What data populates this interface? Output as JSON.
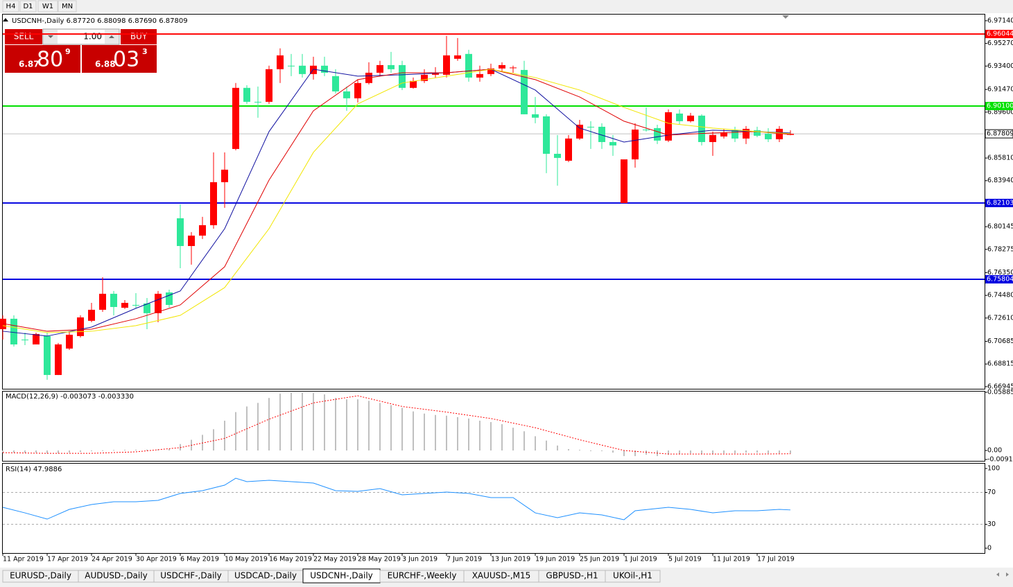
{
  "toolbar": {
    "timeframes": [
      "H4",
      "D1",
      "W1",
      "MN"
    ]
  },
  "trade_panel": {
    "sell_label": "SELL",
    "lot": "1.00",
    "buy_label": "BUY",
    "sell_price": {
      "big": "6.87",
      "main": "80",
      "sup": "9"
    },
    "buy_price": {
      "big": "6.88",
      "main": "03",
      "sup": "3"
    }
  },
  "chart_data": [
    {
      "type": "candlestick",
      "title": "USDCNH-,Daily  6.87720 6.88098 6.87690 6.87809",
      "categories": [
        "11 Apr 2019",
        null,
        null,
        null,
        "17 Apr 2019",
        null,
        null,
        null,
        "24 Apr 2019",
        null,
        null,
        null,
        "30 Apr 2019",
        null,
        null,
        null,
        "6 May 2019",
        null,
        null,
        null,
        "10 May 2019",
        null,
        null,
        null,
        "16 May 2019",
        null,
        null,
        null,
        "22 May 2019",
        null,
        null,
        null,
        "28 May 2019",
        null,
        null,
        null,
        "3 Jun 2019",
        null,
        null,
        null,
        "7 Jun 2019",
        null,
        null,
        null,
        "13 Jun 2019",
        null,
        null,
        null,
        "19 Jun 2019",
        null,
        null,
        null,
        "25 Jun 2019",
        null,
        null,
        null,
        "1 Jul 2019",
        null,
        null,
        null,
        "5 Jul 2019",
        null,
        null,
        null,
        "11 Jul 2019",
        null,
        null,
        null,
        "17 Jul 2019",
        null,
        null,
        null
      ],
      "candles": {
        "open": [
          6.7169,
          6.7255,
          6.7083,
          6.7043,
          6.7112,
          6.6791,
          6.7009,
          6.7112,
          6.7238,
          6.7329,
          6.7461,
          6.7346,
          6.7369,
          6.7381,
          6.7301,
          6.7472,
          6.8084,
          6.7855,
          6.7941,
          6.8027,
          6.8382,
          6.8656,
          6.916,
          6.9045,
          6.9045,
          6.9314,
          6.9343,
          6.9343,
          6.9274,
          6.9343,
          6.9257,
          6.9131,
          6.9074,
          6.92,
          6.9285,
          6.9348,
          6.9348,
          6.916,
          6.9217,
          6.9268,
          6.9268,
          6.94,
          6.944,
          6.9245,
          6.9274,
          6.932,
          6.9325,
          6.9308,
          6.8942,
          6.8925,
          6.8616,
          6.8559,
          6.8742,
          6.8839,
          6.8839,
          6.8713,
          6.821,
          6.857,
          6.8816,
          6.8828,
          6.8725,
          6.8948,
          6.8885,
          6.8931,
          6.8713,
          6.8759,
          6.8811,
          6.8742,
          6.8811,
          6.8782,
          6.8736,
          6.8772
        ],
        "high": [
          6.7283,
          6.7283,
          6.714,
          6.714,
          6.714,
          6.7055,
          6.7152,
          6.7283,
          6.7386,
          6.7598,
          6.7484,
          6.7409,
          6.7466,
          6.7426,
          6.7484,
          6.7495,
          6.8199,
          6.797,
          6.8096,
          6.8628,
          6.8628,
          6.92,
          6.9182,
          6.9171,
          6.9343,
          6.9486,
          6.944,
          6.944,
          6.9417,
          6.9417,
          6.9314,
          6.9171,
          6.9228,
          6.9371,
          6.9383,
          6.9457,
          6.9383,
          6.9245,
          6.9314,
          6.9331,
          6.9589,
          6.9571,
          6.9474,
          6.9343,
          6.936,
          6.9371,
          6.9343,
          6.9383,
          6.9085,
          6.8942,
          6.8771,
          6.8771,
          6.8896,
          6.8885,
          6.8868,
          6.8771,
          6.857,
          6.8868,
          6.8999,
          6.8856,
          6.8982,
          6.8982,
          6.8954,
          6.8942,
          6.8799,
          6.8822,
          6.8839,
          6.8845,
          6.8839,
          6.8828,
          6.8845,
          6.88098
        ],
        "low": [
          6.7083,
          6.7026,
          6.7037,
          6.7043,
          6.6751,
          6.6791,
          6.6997,
          6.71,
          6.7226,
          6.7312,
          6.7283,
          6.7335,
          6.7341,
          6.7169,
          6.7226,
          6.7346,
          6.7672,
          6.7701,
          6.7913,
          6.7998,
          6.817,
          6.8645,
          6.9028,
          6.8914,
          6.9028,
          6.92,
          6.9257,
          6.9245,
          6.9228,
          6.9257,
          6.9114,
          6.8971,
          6.9039,
          6.9188,
          6.9257,
          6.9285,
          6.9142,
          6.9154,
          6.92,
          6.9245,
          6.9245,
          6.9383,
          6.9211,
          6.9211,
          6.9257,
          6.9291,
          6.9285,
          6.8942,
          6.8868,
          6.8456,
          6.8353,
          6.8548,
          6.8731,
          6.8656,
          6.8656,
          6.8599,
          6.821,
          6.8502,
          6.8799,
          6.8696,
          6.8713,
          6.8856,
          6.8874,
          6.8685,
          6.8599,
          6.8742,
          6.8713,
          6.8696,
          6.8753,
          6.8713,
          6.8713,
          6.8769
        ],
        "close": [
          6.7255,
          6.7043,
          6.708,
          6.7129,
          6.6791,
          6.7043,
          6.7123,
          6.7266,
          6.7329,
          6.7461,
          6.7352,
          6.7386,
          6.7366,
          6.7301,
          6.7461,
          6.7369,
          6.7855,
          6.7941,
          6.8027,
          6.8382,
          6.8485,
          6.916,
          6.9045,
          6.904,
          6.9314,
          6.9428,
          6.934,
          6.9274,
          6.9343,
          6.9285,
          6.9131,
          6.9074,
          6.92,
          6.9285,
          6.9348,
          6.9314,
          6.916,
          6.9217,
          6.9268,
          6.9285,
          6.9428,
          6.9428,
          6.9245,
          6.9274,
          6.932,
          6.9348,
          6.9328,
          6.8942,
          6.8914,
          6.8616,
          6.8582,
          6.8742,
          6.8856,
          6.8836,
          6.8713,
          6.8685,
          6.857,
          6.8816,
          6.8813,
          6.8725,
          6.8959,
          6.8885,
          6.8931,
          6.8713,
          6.8771,
          6.8793,
          6.8742,
          6.8822,
          6.8765,
          6.8736,
          6.8822,
          6.87809
        ]
      },
      "up_color": "#ff0000",
      "down_color": "#2ee89a",
      "series": [
        {
          "color": "#1010a0",
          "x": [
            0,
            4,
            8,
            12,
            16,
            20,
            24,
            28,
            32,
            36,
            40,
            44,
            48,
            52,
            56,
            60,
            64,
            68,
            71
          ],
          "values": [
            6.7152,
            6.7112,
            6.7186,
            6.7341,
            6.7484,
            6.7998,
            6.8799,
            6.9314,
            6.9257,
            6.9268,
            6.9285,
            6.9314,
            6.9142,
            6.8828,
            6.8713,
            6.8771,
            6.8811,
            6.8799,
            6.8788
          ]
        },
        {
          "color": "#e00000",
          "x": [
            0,
            4,
            8,
            12,
            16,
            20,
            24,
            28,
            32,
            36,
            40,
            44,
            48,
            52,
            56,
            60,
            64,
            68,
            71
          ],
          "values": [
            6.7215,
            6.7152,
            6.7169,
            6.7255,
            6.7369,
            6.7684,
            6.8399,
            6.8971,
            6.9228,
            6.9285,
            6.9285,
            6.9314,
            6.9228,
            6.9085,
            6.8885,
            6.8771,
            6.8788,
            6.8799,
            6.8776
          ]
        },
        {
          "color": "#f2e600",
          "x": [
            0,
            4,
            8,
            12,
            16,
            20,
            24,
            28,
            32,
            36,
            40,
            44,
            48,
            52,
            56,
            60,
            64,
            68,
            71
          ],
          "values": [
            6.7198,
            6.714,
            6.7152,
            6.7198,
            6.7283,
            6.7512,
            6.7998,
            6.8628,
            6.9028,
            6.92,
            6.9257,
            6.9314,
            6.9245,
            6.9142,
            6.8999,
            6.8868,
            6.8828,
            6.8799,
            6.8782
          ]
        }
      ],
      "hlines": [
        {
          "value": 6.96044,
          "color": "#ff0000"
        },
        {
          "value": 6.901,
          "label": "6.90100",
          "color": "#00e000"
        },
        {
          "value": 6.82103,
          "color": "#0000e0"
        },
        {
          "value": 6.75804,
          "color": "#0000e0"
        }
      ],
      "ylim": [
        6.6677,
        6.9765
      ],
      "yticks": [
        {
          "value": 6.9714,
          "label": "6.97140"
        },
        {
          "value": 6.9527,
          "label": "6.95270"
        },
        {
          "value": 6.934,
          "label": "6.93400"
        },
        {
          "value": 6.9147,
          "label": "6.91470"
        },
        {
          "value": 6.896,
          "label": "6.89600"
        },
        {
          "value": 6.8581,
          "label": "6.85810"
        },
        {
          "value": 6.8394,
          "label": "6.83940"
        },
        6.80145,
        6.78275,
        {
          "value": 6.7635,
          "label": "6.76350"
        },
        {
          "value": 6.7448,
          "label": "6.74480"
        },
        {
          "value": 6.7261,
          "label": "6.72610"
        },
        6.70685,
        6.68815,
        6.66945
      ]
    },
    {
      "type": "macd",
      "title": "MACD(12,26,9) -0.003073 -0.003330",
      "values": [
        -0.002,
        -0.0022,
        -0.0025,
        -0.0022,
        -0.003,
        -0.0028,
        -0.0022,
        -0.0015,
        -0.0008,
        0.0002,
        0.0005,
        0.0007,
        0.0008,
        0.0009,
        0.0012,
        0.0014,
        0.0065,
        0.0108,
        0.0158,
        0.0215,
        0.0301,
        0.0388,
        0.0445,
        0.0481,
        0.0531,
        0.0574,
        0.0585,
        0.0585,
        0.058,
        0.0567,
        0.0531,
        0.0517,
        0.0517,
        0.0502,
        0.0481,
        0.0459,
        0.0431,
        0.0395,
        0.0373,
        0.0359,
        0.0352,
        0.0337,
        0.0323,
        0.0301,
        0.0287,
        0.0266,
        0.023,
        0.0194,
        0.0144,
        0.01,
        0.005,
        0.0014,
        0.0007,
        0,
        -0.0007,
        -0.0022,
        -0.0057,
        -0.0057,
        -0.0043,
        -0.0057,
        -0.0043,
        -0.0036,
        -0.0029,
        -0.0036,
        -0.0036,
        -0.0029,
        -0.0029,
        -0.0022,
        -0.0022,
        -0.0029,
        -0.0029,
        -0.003073
      ],
      "color": "#c0c0c0",
      "signal": {
        "color": "#ff0000",
        "x": [
          0,
          4,
          8,
          12,
          16,
          20,
          24,
          28,
          32,
          36,
          40,
          44,
          48,
          52,
          56,
          60,
          64,
          68,
          71
        ],
        "values": [
          -0.0022,
          -0.0029,
          -0.0029,
          -0.0014,
          0.0029,
          0.0122,
          0.0316,
          0.0481,
          0.0553,
          0.0445,
          0.0388,
          0.0323,
          0.023,
          0.0108,
          0,
          -0.0036,
          -0.0036,
          -0.0036,
          -0.00333
        ]
      },
      "ylim": [
        -0.009116,
        0.058851
      ],
      "yticks": [
        0.058851,
        {
          "value": 0,
          "label": "0.00"
        },
        -0.009116
      ]
    },
    {
      "type": "line",
      "title": "RSI(14) 47.9886",
      "color": "#1e90ff",
      "x": [
        0,
        2,
        4,
        6,
        8,
        10,
        12,
        14,
        16,
        18,
        20,
        21,
        22,
        24,
        26,
        28,
        30,
        32,
        34,
        36,
        38,
        40,
        42,
        44,
        46,
        48,
        50,
        52,
        54,
        56,
        57,
        60,
        62,
        64,
        66,
        68,
        70,
        71
      ],
      "values": [
        51.3,
        44.3,
        36.5,
        48.7,
        54.8,
        58.3,
        58.3,
        60.0,
        68.7,
        72.2,
        79.1,
        87.8,
        83.5,
        85.2,
        83.5,
        81.7,
        72.2,
        71.3,
        74.8,
        67.0,
        68.7,
        70.4,
        68.7,
        63.5,
        63.5,
        44.3,
        38.3,
        44.3,
        41.7,
        35.7,
        47.0,
        51.3,
        48.7,
        44.3,
        47.0,
        47.0,
        48.7,
        47.9886
      ],
      "ylim": [
        0,
        100
      ],
      "yticks": [
        100,
        70,
        30,
        0
      ]
    }
  ],
  "tabs": [
    "EURUSD-,Daily",
    "AUDUSD-,Daily",
    "USDCHF-,Daily",
    "USDCAD-,Daily",
    "USDCNH-,Daily",
    "EURCHF-,Weekly",
    "XAUUSD-,M15",
    "GBPUSD-,H1",
    "UKOil-,H1"
  ],
  "active_tab": 4
}
